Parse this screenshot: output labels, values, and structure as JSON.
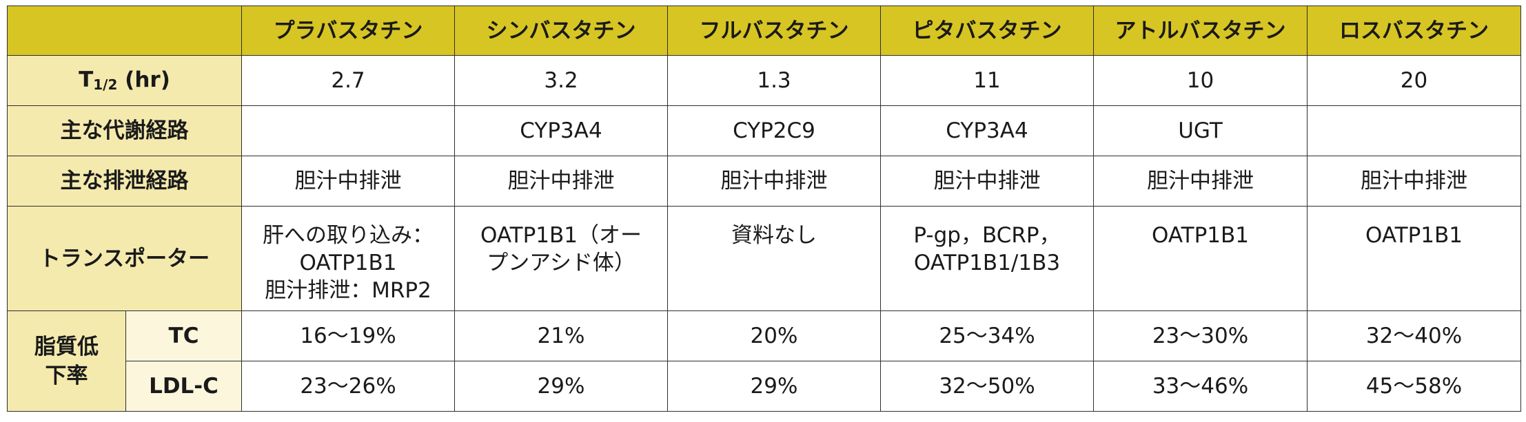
{
  "header": {
    "drugs": [
      "プラバスタチン",
      "シンバスタチン",
      "フルバスタチン",
      "ピタバスタチン",
      "アトルバスタチン",
      "ロスバスタチン"
    ]
  },
  "rows": {
    "half_life": {
      "label_T": "T",
      "label_sub": "1/2",
      "label_unit": " (hr)",
      "values": [
        "2.7",
        "3.2",
        "1.3",
        "11",
        "10",
        "20"
      ]
    },
    "metabolism": {
      "label": "主な代謝経路",
      "values": [
        "",
        "CYP3A4",
        "CYP2C9",
        "CYP3A4",
        "UGT",
        ""
      ]
    },
    "excretion": {
      "label": "主な排泄経路",
      "values": [
        "胆汁中排泄",
        "胆汁中排泄",
        "胆汁中排泄",
        "胆汁中排泄",
        "胆汁中排泄",
        "胆汁中排泄"
      ]
    },
    "transporter": {
      "label": "トランスポーター",
      "values": [
        [
          "肝への取り込み：",
          "OATP1B1",
          "胆汁排泄：MRP2"
        ],
        [
          "OATP1B1（オー",
          "プンアシド体）"
        ],
        [
          "資料なし"
        ],
        [
          "P-gp，BCRP，",
          "OATP1B1/1B3"
        ],
        [
          "OATP1B1"
        ],
        [
          "OATP1B1"
        ]
      ]
    },
    "lipid": {
      "label_line1": "脂質低",
      "label_line2": "下率",
      "tc": {
        "label": "TC",
        "values": [
          "16～19%",
          "21%",
          "20%",
          "25～34%",
          "23～30%",
          "32～40%"
        ]
      },
      "ldl": {
        "label": "LDL-C",
        "values": [
          "23～26%",
          "29%",
          "29%",
          "32～50%",
          "33～46%",
          "45～58%"
        ]
      }
    }
  },
  "colors": {
    "header_bg": "#d7c524",
    "row_label_bg": "#f4eaae",
    "sub_label_bg": "#fbf6dc",
    "border": "#2d2d2d"
  }
}
